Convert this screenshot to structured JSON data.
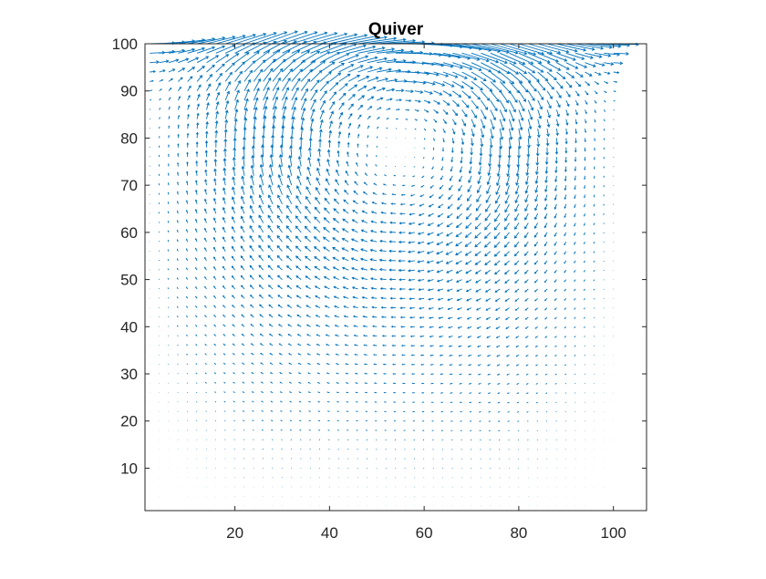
{
  "chart_data": {
    "type": "quiver",
    "title": "Quiver",
    "xlabel": "",
    "ylabel": "",
    "xlim": [
      1,
      107
    ],
    "ylim": [
      1,
      100
    ],
    "xticks": [
      20,
      40,
      60,
      80,
      100
    ],
    "yticks": [
      10,
      20,
      30,
      40,
      50,
      60,
      70,
      80,
      90,
      100
    ],
    "grid": false,
    "color": "#0072BD",
    "field": {
      "description_of_flow": "lid-driven cavity style vortex",
      "x_range": [
        2,
        100
      ],
      "y_range": [
        2,
        100
      ],
      "vortex_center": [
        55,
        78
      ],
      "lid_velocity_x": 1.0
    }
  }
}
